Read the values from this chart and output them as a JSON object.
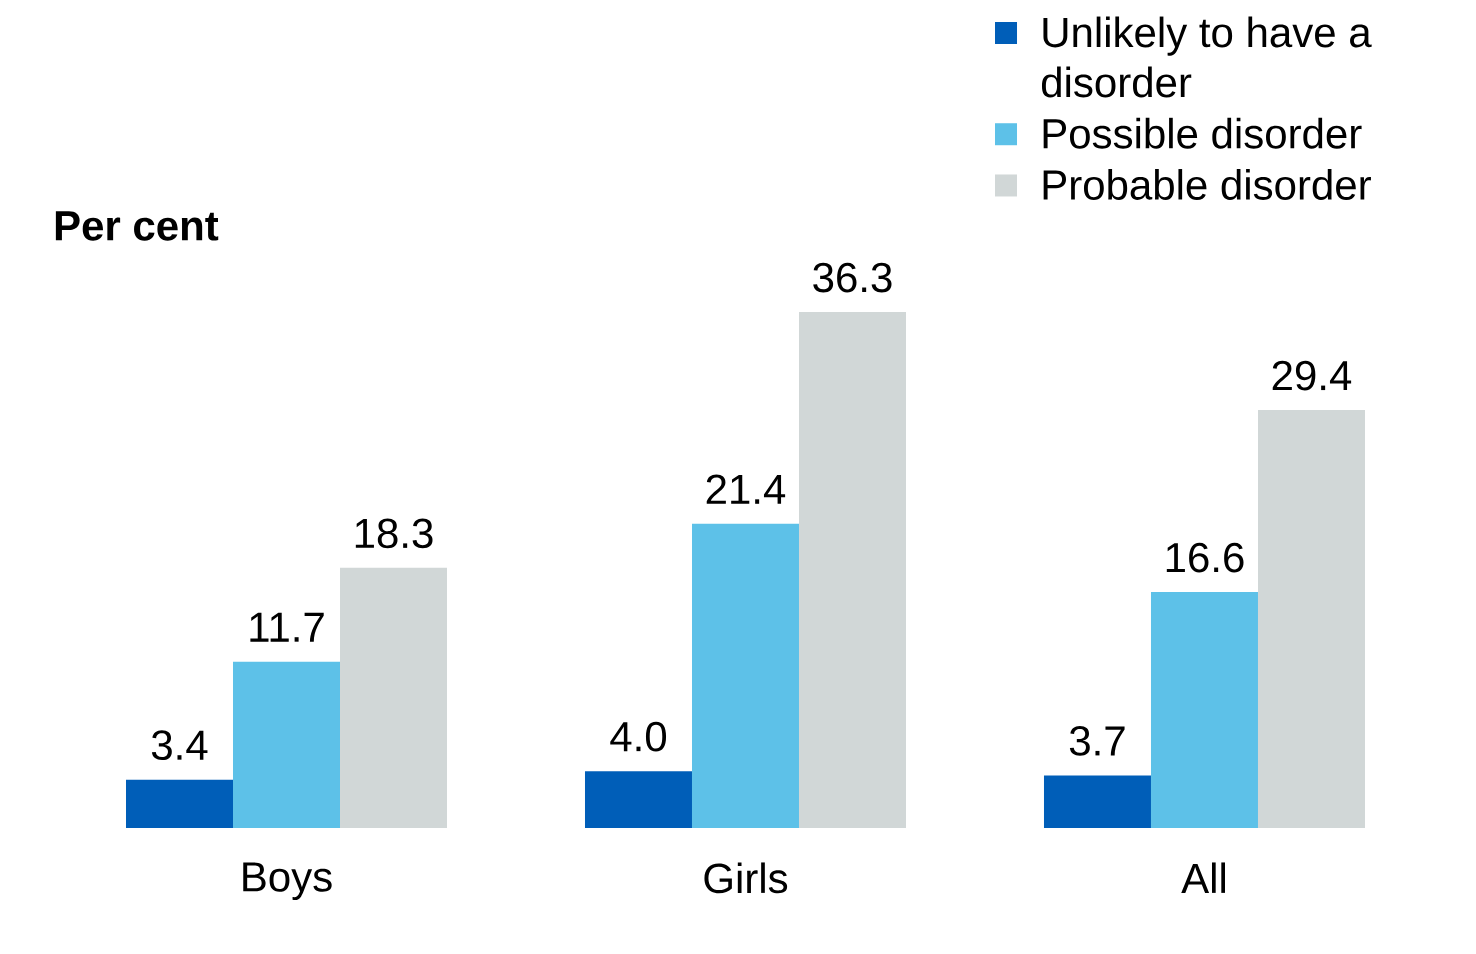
{
  "chart_data": {
    "type": "bar",
    "ylabel": "Per cent",
    "categories": [
      "Boys",
      "Girls",
      "All"
    ],
    "series": [
      {
        "name": "Unlikely to have a disorder",
        "color": "#005eb8",
        "values": [
          3.4,
          4.0,
          3.7
        ],
        "value_labels": [
          "3.4",
          "4.0",
          "3.7"
        ]
      },
      {
        "name": "Possible disorder",
        "color": "#5dc1e8",
        "values": [
          11.7,
          21.4,
          16.6
        ],
        "value_labels": [
          "11.7",
          "21.4",
          "16.6"
        ]
      },
      {
        "name": "Probable disorder",
        "color": "#d1d7d7",
        "values": [
          18.3,
          36.3,
          29.4
        ],
        "value_labels": [
          "18.3",
          "36.3",
          "29.4"
        ]
      }
    ],
    "legend": "top right",
    "tick_labels": "x"
  }
}
